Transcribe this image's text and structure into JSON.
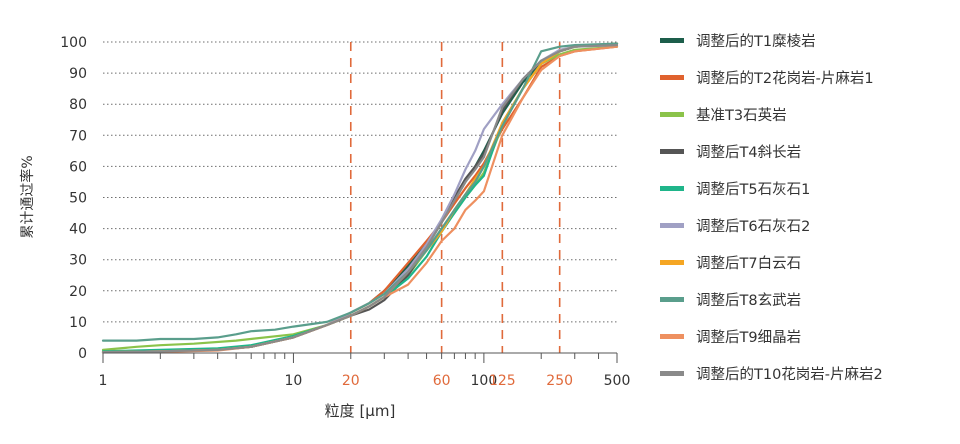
{
  "chart_data": {
    "type": "line",
    "x_scale": "log",
    "xlabel": "粒度 [µm]",
    "ylabel": "累计通过率%",
    "xlim": [
      1,
      500
    ],
    "ylim": [
      0,
      100
    ],
    "grid": "horizontal dotted",
    "legend_position": "right",
    "y_ticks": [
      0,
      10,
      20,
      30,
      40,
      50,
      60,
      70,
      80,
      90,
      100
    ],
    "x_ticks": [
      {
        "value": 1,
        "label": "1",
        "highlight": false
      },
      {
        "value": 10,
        "label": "10",
        "highlight": false
      },
      {
        "value": 20,
        "label": "20",
        "highlight": true
      },
      {
        "value": 60,
        "label": "60",
        "highlight": true
      },
      {
        "value": 100,
        "label": "100",
        "highlight": false
      },
      {
        "value": 125,
        "label": "125",
        "highlight": true
      },
      {
        "value": 250,
        "label": "250",
        "highlight": true
      },
      {
        "value": 500,
        "label": "500",
        "highlight": false
      }
    ],
    "reference_lines_x": [
      20,
      60,
      125,
      250
    ],
    "reference_line_color": "#e06a3b",
    "highlight_tick_color": "#e06a3b",
    "series": [
      {
        "name": "调整后的T1糜棱岩",
        "color": "#1d5e4b",
        "points": [
          [
            1,
            0.3
          ],
          [
            2,
            0.5
          ],
          [
            4,
            1
          ],
          [
            6,
            2
          ],
          [
            10,
            5
          ],
          [
            15,
            9
          ],
          [
            20,
            13
          ],
          [
            25,
            16
          ],
          [
            30,
            20
          ],
          [
            40,
            28
          ],
          [
            50,
            35
          ],
          [
            60,
            42
          ],
          [
            70,
            49
          ],
          [
            80,
            55
          ],
          [
            90,
            60
          ],
          [
            100,
            65
          ],
          [
            125,
            77
          ],
          [
            160,
            87
          ],
          [
            200,
            93
          ],
          [
            250,
            97
          ],
          [
            300,
            98.5
          ],
          [
            500,
            99.5
          ]
        ]
      },
      {
        "name": "调整后的T2花岗岩-片麻岩1",
        "color": "#e0622e",
        "points": [
          [
            1,
            0.3
          ],
          [
            2,
            0.5
          ],
          [
            4,
            1
          ],
          [
            6,
            2
          ],
          [
            10,
            5
          ],
          [
            15,
            9
          ],
          [
            20,
            13
          ],
          [
            25,
            16
          ],
          [
            30,
            20
          ],
          [
            40,
            29
          ],
          [
            50,
            36
          ],
          [
            60,
            42
          ],
          [
            70,
            48
          ],
          [
            80,
            53
          ],
          [
            90,
            57
          ],
          [
            100,
            61
          ],
          [
            125,
            72
          ],
          [
            160,
            82
          ],
          [
            200,
            92
          ],
          [
            250,
            95.5
          ],
          [
            300,
            97
          ],
          [
            500,
            98.5
          ]
        ]
      },
      {
        "name": "基准T3石英岩",
        "color": "#8bc34a",
        "points": [
          [
            1,
            1
          ],
          [
            1.5,
            2
          ],
          [
            2,
            2.5
          ],
          [
            3,
            3
          ],
          [
            5,
            4
          ],
          [
            10,
            6
          ],
          [
            15,
            9
          ],
          [
            20,
            12
          ],
          [
            25,
            15
          ],
          [
            30,
            18
          ],
          [
            40,
            25
          ],
          [
            50,
            33
          ],
          [
            60,
            40
          ],
          [
            70,
            45
          ],
          [
            80,
            50
          ],
          [
            90,
            54
          ],
          [
            100,
            58
          ],
          [
            125,
            73
          ],
          [
            160,
            85
          ],
          [
            200,
            93
          ],
          [
            250,
            96
          ],
          [
            300,
            97.5
          ],
          [
            500,
            98.5
          ]
        ]
      },
      {
        "name": "调整后T4斜长岩",
        "color": "#555555",
        "points": [
          [
            1,
            0.3
          ],
          [
            2,
            0.5
          ],
          [
            4,
            1
          ],
          [
            6,
            2
          ],
          [
            10,
            5
          ],
          [
            15,
            9
          ],
          [
            20,
            12
          ],
          [
            25,
            14
          ],
          [
            30,
            17
          ],
          [
            40,
            25
          ],
          [
            50,
            34
          ],
          [
            60,
            42
          ],
          [
            70,
            50
          ],
          [
            80,
            56
          ],
          [
            90,
            60
          ],
          [
            100,
            64
          ],
          [
            125,
            78
          ],
          [
            160,
            88
          ],
          [
            200,
            94
          ],
          [
            250,
            97
          ],
          [
            300,
            98.5
          ],
          [
            500,
            99.5
          ]
        ]
      },
      {
        "name": "调整后T5石灰石1",
        "color": "#1fb58a",
        "points": [
          [
            1,
            0.5
          ],
          [
            2,
            1
          ],
          [
            4,
            1.5
          ],
          [
            6,
            2.5
          ],
          [
            10,
            5.5
          ],
          [
            15,
            9
          ],
          [
            20,
            12
          ],
          [
            25,
            15
          ],
          [
            30,
            18
          ],
          [
            40,
            24
          ],
          [
            50,
            31
          ],
          [
            60,
            39
          ],
          [
            70,
            45
          ],
          [
            80,
            50
          ],
          [
            90,
            54
          ],
          [
            100,
            57
          ],
          [
            125,
            74
          ],
          [
            160,
            85
          ],
          [
            200,
            93
          ],
          [
            250,
            97
          ],
          [
            300,
            98.5
          ],
          [
            500,
            99.5
          ]
        ]
      },
      {
        "name": "调整后T6石灰石2",
        "color": "#a0a0c4",
        "points": [
          [
            1,
            0.3
          ],
          [
            2,
            0.5
          ],
          [
            4,
            1
          ],
          [
            6,
            2
          ],
          [
            10,
            5
          ],
          [
            15,
            9
          ],
          [
            20,
            13
          ],
          [
            25,
            16
          ],
          [
            30,
            19
          ],
          [
            40,
            27
          ],
          [
            50,
            35
          ],
          [
            60,
            43
          ],
          [
            70,
            51
          ],
          [
            80,
            59
          ],
          [
            90,
            65
          ],
          [
            100,
            72
          ],
          [
            125,
            80
          ],
          [
            160,
            88
          ],
          [
            200,
            94
          ],
          [
            250,
            97.5
          ],
          [
            300,
            98.5
          ],
          [
            500,
            99
          ]
        ]
      },
      {
        "name": "调整后T7白云石",
        "color": "#f5a623",
        "points": [
          [
            1,
            0.3
          ],
          [
            2,
            0.5
          ],
          [
            4,
            1
          ],
          [
            6,
            2
          ],
          [
            10,
            5
          ],
          [
            15,
            9
          ],
          [
            20,
            12
          ],
          [
            25,
            15
          ],
          [
            30,
            18
          ],
          [
            40,
            26
          ],
          [
            50,
            33
          ],
          [
            60,
            39
          ],
          [
            70,
            46
          ],
          [
            80,
            51
          ],
          [
            90,
            56
          ],
          [
            100,
            60
          ],
          [
            125,
            74
          ],
          [
            160,
            85
          ],
          [
            200,
            93
          ],
          [
            250,
            97
          ],
          [
            300,
            98.5
          ],
          [
            500,
            99.5
          ]
        ]
      },
      {
        "name": "调整后T8玄武岩",
        "color": "#5a9e8c",
        "points": [
          [
            1,
            4
          ],
          [
            1.5,
            4
          ],
          [
            2,
            4.5
          ],
          [
            3,
            4.5
          ],
          [
            4,
            5
          ],
          [
            5,
            6
          ],
          [
            6,
            7
          ],
          [
            8,
            7.5
          ],
          [
            10,
            8.5
          ],
          [
            15,
            10
          ],
          [
            20,
            13
          ],
          [
            25,
            16
          ],
          [
            30,
            19
          ],
          [
            40,
            26
          ],
          [
            50,
            33
          ],
          [
            60,
            40
          ],
          [
            70,
            46
          ],
          [
            80,
            51
          ],
          [
            90,
            55
          ],
          [
            100,
            60
          ],
          [
            125,
            73
          ],
          [
            160,
            85
          ],
          [
            200,
            97
          ],
          [
            250,
            98.5
          ],
          [
            300,
            99
          ],
          [
            500,
            99.5
          ]
        ]
      },
      {
        "name": "调整后T9细晶岩",
        "color": "#ee9060",
        "points": [
          [
            1,
            0.2
          ],
          [
            2,
            0.4
          ],
          [
            4,
            0.8
          ],
          [
            6,
            2
          ],
          [
            10,
            5
          ],
          [
            15,
            9
          ],
          [
            20,
            12
          ],
          [
            25,
            15
          ],
          [
            30,
            18
          ],
          [
            40,
            22
          ],
          [
            50,
            29
          ],
          [
            60,
            36
          ],
          [
            70,
            40
          ],
          [
            80,
            46
          ],
          [
            90,
            49
          ],
          [
            100,
            52
          ],
          [
            125,
            70
          ],
          [
            160,
            82
          ],
          [
            200,
            91
          ],
          [
            250,
            95.5
          ],
          [
            300,
            97
          ],
          [
            500,
            98.5
          ]
        ]
      },
      {
        "name": "调整后的T10花岗岩-片麻岩2",
        "color": "#8a8a8a",
        "points": [
          [
            1,
            0.3
          ],
          [
            2,
            0.5
          ],
          [
            4,
            1
          ],
          [
            6,
            2
          ],
          [
            10,
            5
          ],
          [
            15,
            9
          ],
          [
            20,
            12
          ],
          [
            25,
            15
          ],
          [
            30,
            18
          ],
          [
            40,
            26
          ],
          [
            50,
            34
          ],
          [
            60,
            42
          ],
          [
            70,
            49
          ],
          [
            80,
            55
          ],
          [
            90,
            59
          ],
          [
            100,
            63
          ],
          [
            125,
            79
          ],
          [
            160,
            88
          ],
          [
            200,
            94
          ],
          [
            250,
            97
          ],
          [
            300,
            98.5
          ],
          [
            500,
            99
          ]
        ]
      }
    ]
  }
}
